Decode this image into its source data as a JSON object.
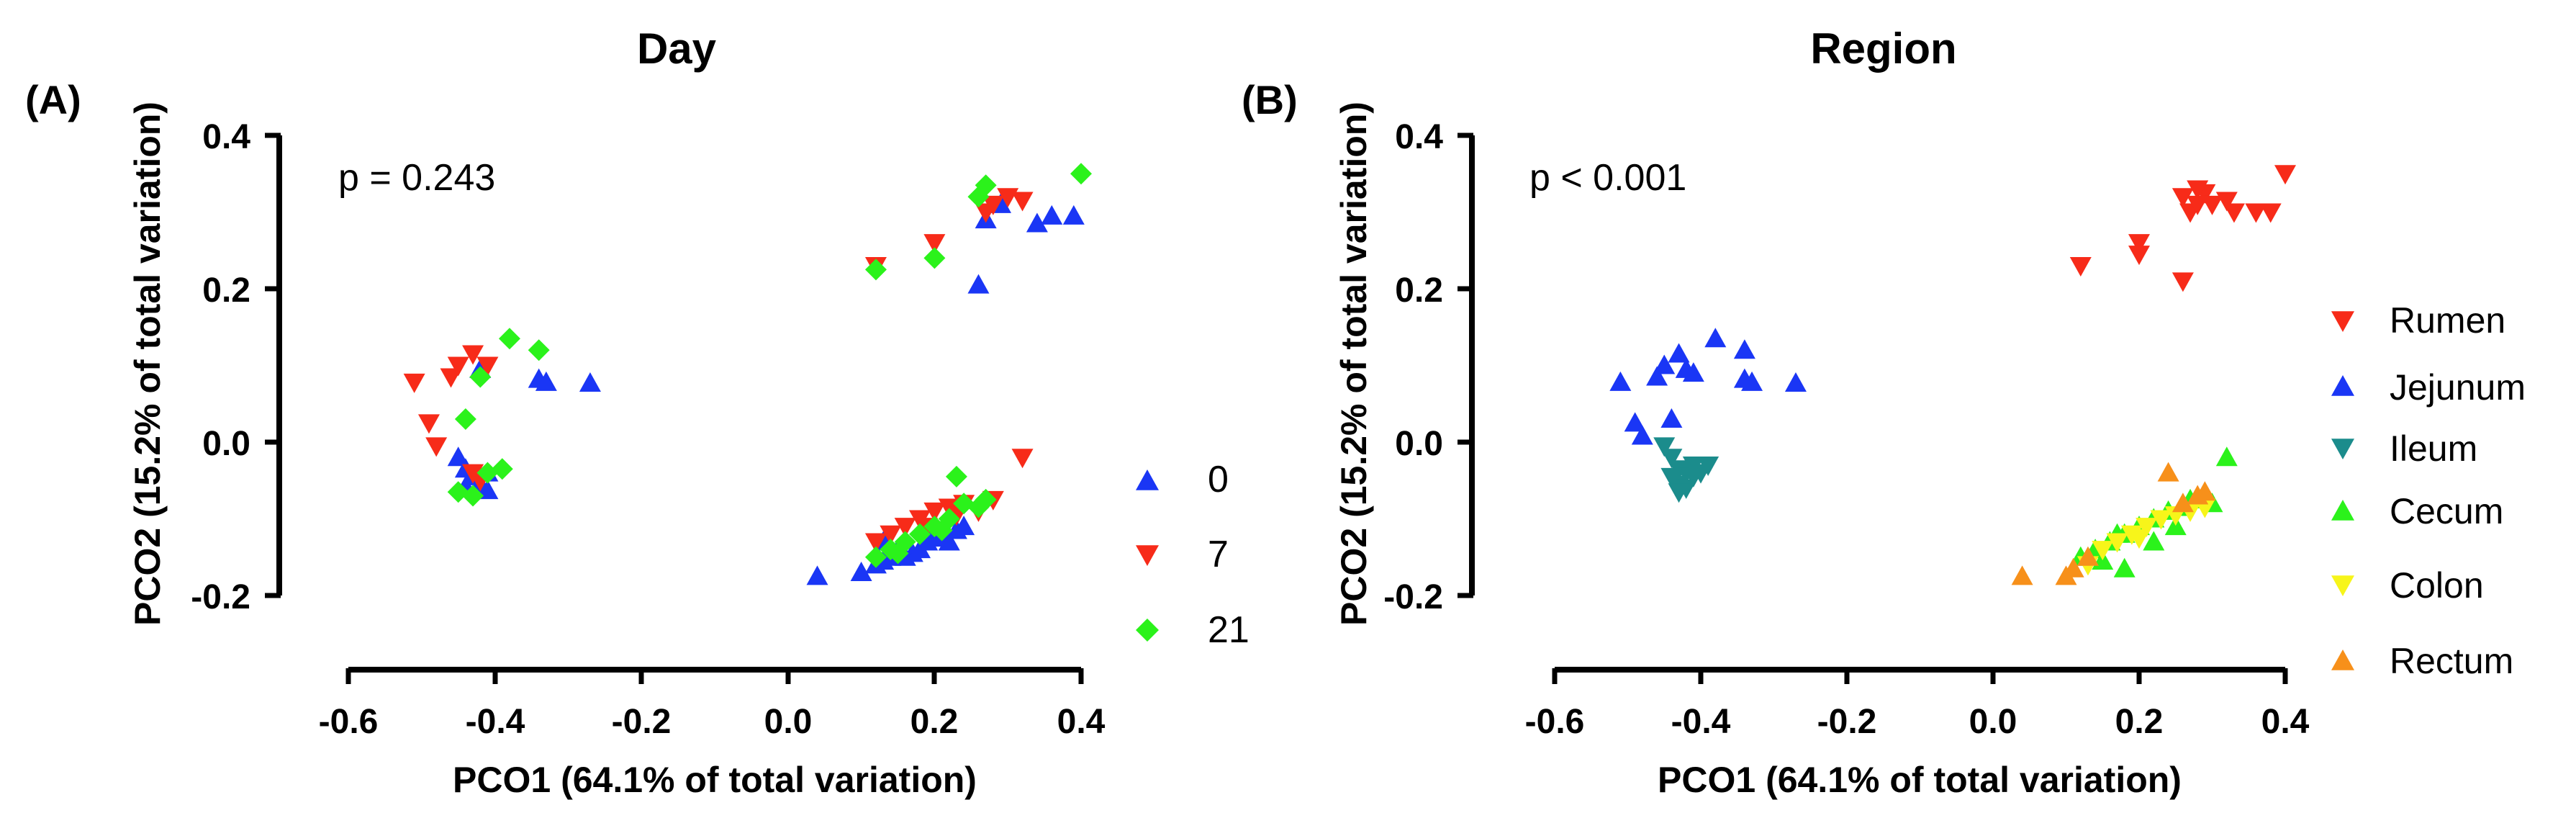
{
  "chart_data": [
    {
      "type": "scatter",
      "panel_label": "(A)",
      "title": "Day",
      "xlabel": "PCO1 (64.1% of total variation)",
      "ylabel": "PCO2 (15.2% of total variation)",
      "xlim": [
        -0.6,
        0.4
      ],
      "ylim": [
        -0.2,
        0.4
      ],
      "x_ticks": [
        "-0.6",
        "-0.4",
        "-0.2",
        "0.0",
        "0.2",
        "0.4"
      ],
      "y_ticks": [
        "0.4",
        "0.2",
        "0.0",
        "-0.2"
      ],
      "annotation": "p = 0.243",
      "legend_position": "right",
      "series": [
        {
          "name": "0",
          "color": "#1a36f5",
          "marker": "triangle-up",
          "points": [
            [
              -0.42,
              0.095
            ],
            [
              -0.34,
              0.082
            ],
            [
              -0.33,
              0.078
            ],
            [
              -0.27,
              0.077
            ],
            [
              -0.45,
              -0.02
            ],
            [
              -0.44,
              -0.035
            ],
            [
              -0.43,
              -0.045
            ],
            [
              -0.42,
              -0.055
            ],
            [
              -0.41,
              -0.063
            ],
            [
              -0.44,
              -0.058
            ],
            [
              -0.41,
              -0.04
            ],
            [
              0.27,
              0.29
            ],
            [
              0.29,
              0.31
            ],
            [
              0.34,
              0.285
            ],
            [
              0.36,
              0.295
            ],
            [
              0.39,
              0.295
            ],
            [
              0.26,
              0.205
            ],
            [
              0.04,
              -0.175
            ],
            [
              0.1,
              -0.17
            ],
            [
              0.12,
              -0.16
            ],
            [
              0.13,
              -0.155
            ],
            [
              0.14,
              -0.15
            ],
            [
              0.15,
              -0.14
            ],
            [
              0.16,
              -0.15
            ],
            [
              0.17,
              -0.145
            ],
            [
              0.18,
              -0.14
            ],
            [
              0.19,
              -0.13
            ],
            [
              0.2,
              -0.12
            ],
            [
              0.21,
              -0.125
            ],
            [
              0.22,
              -0.13
            ],
            [
              0.23,
              -0.115
            ],
            [
              0.24,
              -0.11
            ],
            [
              0.13,
              -0.13
            ]
          ]
        },
        {
          "name": "7",
          "color": "#f72b19",
          "marker": "triangle-down",
          "points": [
            [
              -0.51,
              0.078
            ],
            [
              -0.49,
              0.025
            ],
            [
              -0.48,
              -0.005
            ],
            [
              -0.46,
              0.085
            ],
            [
              -0.45,
              0.1
            ],
            [
              -0.43,
              0.115
            ],
            [
              -0.41,
              0.1
            ],
            [
              -0.43,
              -0.04
            ],
            [
              -0.42,
              -0.05
            ],
            [
              0.12,
              0.23
            ],
            [
              0.2,
              0.26
            ],
            [
              0.28,
              0.31
            ],
            [
              0.3,
              0.32
            ],
            [
              0.32,
              0.315
            ],
            [
              0.27,
              0.3
            ],
            [
              0.12,
              -0.13
            ],
            [
              0.14,
              -0.12
            ],
            [
              0.16,
              -0.11
            ],
            [
              0.18,
              -0.1
            ],
            [
              0.2,
              -0.09
            ],
            [
              0.22,
              -0.085
            ],
            [
              0.24,
              -0.08
            ],
            [
              0.26,
              -0.09
            ],
            [
              0.28,
              -0.075
            ],
            [
              0.32,
              -0.02
            ],
            [
              0.19,
              -0.11
            ],
            [
              0.23,
              -0.095
            ]
          ]
        },
        {
          "name": "21",
          "color": "#2bf21b",
          "marker": "diamond",
          "points": [
            [
              -0.38,
              0.135
            ],
            [
              -0.34,
              0.12
            ],
            [
              -0.44,
              0.03
            ],
            [
              -0.42,
              0.085
            ],
            [
              -0.45,
              -0.065
            ],
            [
              -0.43,
              -0.07
            ],
            [
              -0.41,
              -0.04
            ],
            [
              -0.39,
              -0.035
            ],
            [
              0.12,
              0.225
            ],
            [
              0.2,
              0.24
            ],
            [
              0.26,
              0.32
            ],
            [
              0.27,
              0.335
            ],
            [
              0.4,
              0.35
            ],
            [
              0.12,
              -0.15
            ],
            [
              0.14,
              -0.14
            ],
            [
              0.16,
              -0.13
            ],
            [
              0.18,
              -0.12
            ],
            [
              0.2,
              -0.11
            ],
            [
              0.22,
              -0.1
            ],
            [
              0.24,
              -0.08
            ],
            [
              0.26,
              -0.085
            ],
            [
              0.27,
              -0.075
            ],
            [
              0.23,
              -0.045
            ],
            [
              0.15,
              -0.145
            ],
            [
              0.21,
              -0.115
            ]
          ]
        }
      ]
    },
    {
      "type": "scatter",
      "panel_label": "(B)",
      "title": "Region",
      "xlabel": "PCO1 (64.1% of total variation)",
      "ylabel": "PCO2 (15.2% of total variation)",
      "xlim": [
        -0.6,
        0.4
      ],
      "ylim": [
        -0.2,
        0.4
      ],
      "x_ticks": [
        "-0.6",
        "-0.4",
        "-0.2",
        "0.0",
        "0.2",
        "0.4"
      ],
      "y_ticks": [
        "0.4",
        "0.2",
        "0.0",
        "-0.2"
      ],
      "annotation": "p < 0.001",
      "legend_position": "right",
      "series": [
        {
          "name": "Rumen",
          "color": "#f72b19",
          "marker": "triangle-down",
          "points": [
            [
              0.12,
              0.23
            ],
            [
              0.2,
              0.26
            ],
            [
              0.2,
              0.245
            ],
            [
              0.26,
              0.21
            ],
            [
              0.26,
              0.32
            ],
            [
              0.27,
              0.3
            ],
            [
              0.28,
              0.31
            ],
            [
              0.29,
              0.325
            ],
            [
              0.3,
              0.31
            ],
            [
              0.32,
              0.315
            ],
            [
              0.33,
              0.3
            ],
            [
              0.36,
              0.3
            ],
            [
              0.38,
              0.3
            ],
            [
              0.4,
              0.35
            ],
            [
              0.28,
              0.33
            ]
          ]
        },
        {
          "name": "Jejunum",
          "color": "#1a36f5",
          "marker": "triangle-up",
          "points": [
            [
              -0.51,
              0.078
            ],
            [
              -0.49,
              0.025
            ],
            [
              -0.46,
              0.085
            ],
            [
              -0.45,
              0.1
            ],
            [
              -0.43,
              0.115
            ],
            [
              -0.42,
              0.095
            ],
            [
              -0.41,
              0.09
            ],
            [
              -0.38,
              0.135
            ],
            [
              -0.34,
              0.12
            ],
            [
              -0.34,
              0.082
            ],
            [
              -0.33,
              0.078
            ],
            [
              -0.27,
              0.077
            ],
            [
              -0.44,
              0.03
            ],
            [
              -0.48,
              0.008
            ]
          ]
        },
        {
          "name": "Ileum",
          "color": "#1b8c8c",
          "marker": "triangle-down",
          "points": [
            [
              -0.45,
              -0.005
            ],
            [
              -0.44,
              -0.02
            ],
            [
              -0.43,
              -0.035
            ],
            [
              -0.42,
              -0.04
            ],
            [
              -0.41,
              -0.045
            ],
            [
              -0.43,
              -0.055
            ],
            [
              -0.42,
              -0.06
            ],
            [
              -0.41,
              -0.03
            ],
            [
              -0.4,
              -0.04
            ],
            [
              -0.44,
              -0.045
            ],
            [
              -0.43,
              -0.065
            ],
            [
              -0.39,
              -0.03
            ]
          ]
        },
        {
          "name": "Cecum",
          "color": "#2bf21b",
          "marker": "triangle-up",
          "points": [
            [
              0.12,
              -0.15
            ],
            [
              0.14,
              -0.14
            ],
            [
              0.15,
              -0.155
            ],
            [
              0.16,
              -0.13
            ],
            [
              0.17,
              -0.12
            ],
            [
              0.18,
              -0.12
            ],
            [
              0.2,
              -0.11
            ],
            [
              0.22,
              -0.1
            ],
            [
              0.24,
              -0.09
            ],
            [
              0.26,
              -0.085
            ],
            [
              0.27,
              -0.075
            ],
            [
              0.3,
              -0.08
            ],
            [
              0.32,
              -0.02
            ],
            [
              0.18,
              -0.165
            ],
            [
              0.22,
              -0.13
            ],
            [
              0.25,
              -0.11
            ]
          ]
        },
        {
          "name": "Colon",
          "color": "#f7f51a",
          "marker": "triangle-down",
          "points": [
            [
              0.13,
              -0.16
            ],
            [
              0.15,
              -0.14
            ],
            [
              0.17,
              -0.13
            ],
            [
              0.19,
              -0.12
            ],
            [
              0.21,
              -0.11
            ],
            [
              0.23,
              -0.1
            ],
            [
              0.25,
              -0.095
            ],
            [
              0.27,
              -0.09
            ],
            [
              0.29,
              -0.085
            ],
            [
              0.2,
              -0.125
            ]
          ]
        },
        {
          "name": "Rectum",
          "color": "#f7901a",
          "marker": "triangle-up",
          "points": [
            [
              0.04,
              -0.175
            ],
            [
              0.1,
              -0.175
            ],
            [
              0.11,
              -0.165
            ],
            [
              0.13,
              -0.15
            ],
            [
              0.24,
              -0.04
            ],
            [
              0.28,
              -0.07
            ],
            [
              0.29,
              -0.065
            ],
            [
              0.26,
              -0.08
            ]
          ]
        }
      ]
    }
  ]
}
